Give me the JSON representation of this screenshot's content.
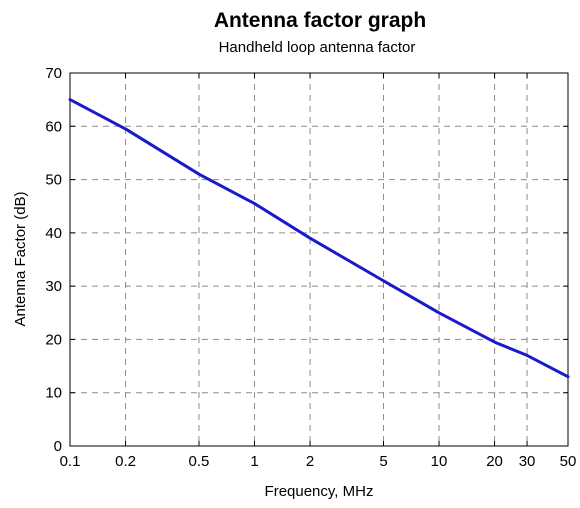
{
  "chart_data": {
    "type": "line",
    "title": "Antenna factor graph",
    "subtitle": "Handheld loop antenna factor",
    "xlabel": "Frequency, MHz",
    "ylabel": "Antenna Factor (dB)",
    "xscale": "log",
    "xlim": [
      0.1,
      50
    ],
    "ylim": [
      0,
      70
    ],
    "xticks": [
      0.1,
      0.2,
      0.5,
      1,
      2,
      5,
      10,
      20,
      30,
      50
    ],
    "xtick_labels": [
      "0.1",
      "0.2",
      "0.5",
      "1",
      "2",
      "5",
      "10",
      "20",
      "30",
      "50"
    ],
    "yticks": [
      0,
      10,
      20,
      30,
      40,
      50,
      60,
      70
    ],
    "ytick_labels": [
      "0",
      "10",
      "20",
      "30",
      "40",
      "50",
      "60",
      "70"
    ],
    "grid": true,
    "legend": false,
    "series": [
      {
        "color": "#1a1acc",
        "x": [
          0.1,
          0.2,
          0.5,
          1,
          2,
          5,
          10,
          20,
          30,
          50
        ],
        "y": [
          65,
          59.5,
          51,
          45.5,
          39,
          31,
          25,
          19.5,
          17,
          13
        ]
      }
    ]
  }
}
